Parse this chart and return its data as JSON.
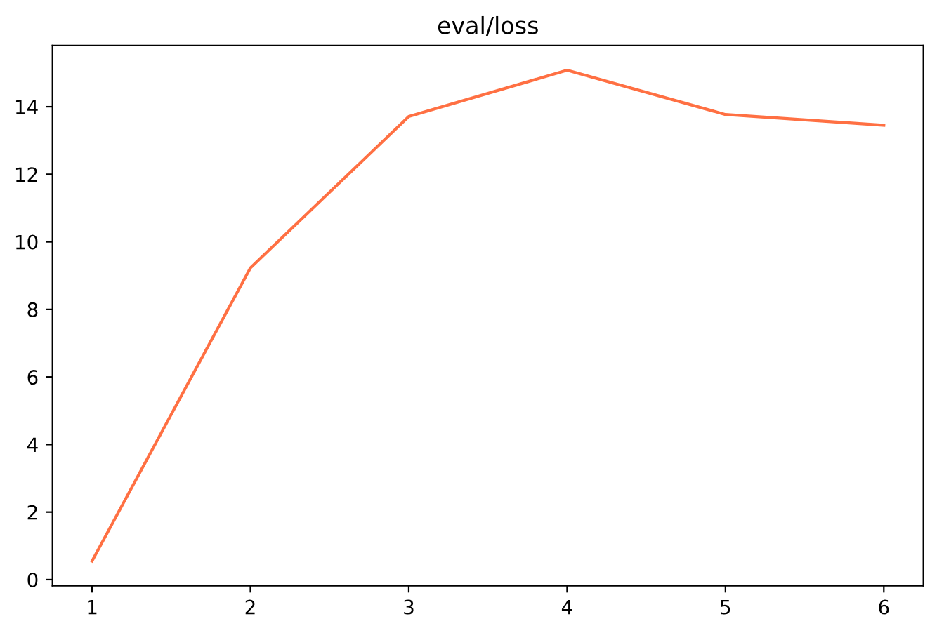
{
  "chart_data": {
    "type": "line",
    "title": "eval/loss",
    "x": [
      1,
      2,
      3,
      4,
      5,
      6
    ],
    "series": [
      {
        "color": "#ff7043",
        "values": [
          0.55,
          9.23,
          13.71,
          15.08,
          13.77,
          13.45
        ]
      }
    ],
    "xlim": [
      0.75,
      6.25
    ],
    "xticks": [
      1,
      2,
      3,
      4,
      5,
      6
    ],
    "ylim": [
      -0.18,
      15.81
    ],
    "yticks": [
      0,
      2,
      4,
      6,
      8,
      10,
      12,
      14
    ],
    "grid": false,
    "marker": "none",
    "line_style": "solid"
  }
}
